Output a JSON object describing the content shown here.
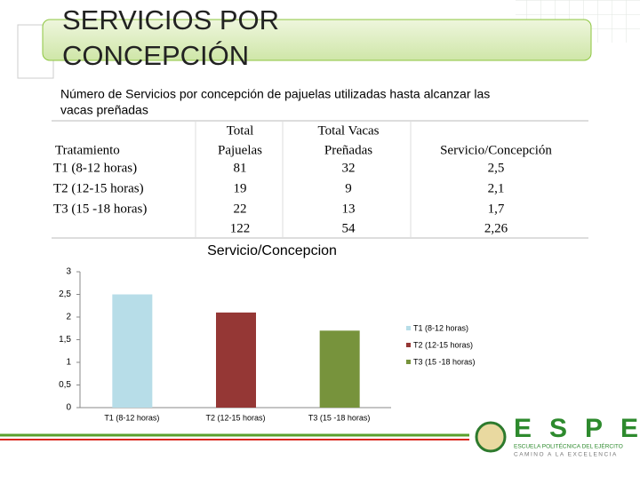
{
  "title_lines": [
    "SERVICIOS POR",
    "CONCEPCIÓN"
  ],
  "subtitle_lines": [
    "Número de Servicios por concepción de pajuelas utilizadas hasta alcanzar las",
    "vacas preñadas"
  ],
  "table": {
    "header": [
      [
        "Tratamiento"
      ],
      [
        "Total",
        "Pajuelas"
      ],
      [
        "Total Vacas",
        "Preñadas"
      ],
      [
        "Servicio/Concepción"
      ]
    ],
    "rows": [
      [
        "T1 (8-12 horas)",
        "81",
        "32",
        "2,5"
      ],
      [
        "T2 (12-15 horas)",
        "19",
        "9",
        "2,1"
      ],
      [
        "T3 (15 -18 horas)",
        "22",
        "13",
        "1,7"
      ],
      [
        null,
        "122",
        "54",
        "2,26"
      ]
    ]
  },
  "chart_data": {
    "type": "bar",
    "title": "Servicio/Concepcion",
    "categories": [
      "T1 (8-12 horas)",
      "T2 (12-15 horas)",
      "T3 (15 -18 horas)"
    ],
    "values": [
      2.5,
      2.1,
      1.7
    ],
    "colors": [
      "#b7dde8",
      "#953735",
      "#77933c"
    ],
    "ylim": [
      0,
      3
    ],
    "yticks": [
      0,
      {
        "value": 0.5,
        "label": "0,5"
      },
      1,
      {
        "value": 1.5,
        "label": "1,5"
      },
      2,
      {
        "value": 2.5,
        "label": "2,5"
      },
      3
    ],
    "legend": "right"
  },
  "logo": {
    "name": "ESPE",
    "line1": "ESCUELA POLITÉCNICA DEL EJÉRCITO",
    "line2": "CAMINO A LA EXCELENCIA"
  }
}
